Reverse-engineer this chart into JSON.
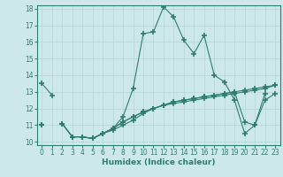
{
  "x": [
    0,
    1,
    2,
    3,
    4,
    5,
    6,
    7,
    8,
    9,
    10,
    11,
    12,
    13,
    14,
    15,
    16,
    17,
    18,
    19,
    20,
    21,
    22,
    23
  ],
  "line1": [
    13.5,
    12.8,
    null,
    10.3,
    10.3,
    10.2,
    10.5,
    10.8,
    11.5,
    13.2,
    16.5,
    16.6,
    18.1,
    17.5,
    16.1,
    15.3,
    16.4,
    14.0,
    13.6,
    12.5,
    10.5,
    11.0,
    12.9,
    null
  ],
  "line2": [
    11.0,
    null,
    11.1,
    10.3,
    10.3,
    10.2,
    10.5,
    10.8,
    11.2,
    11.5,
    11.8,
    12.0,
    12.2,
    12.4,
    12.5,
    12.6,
    12.7,
    12.8,
    12.9,
    13.0,
    13.1,
    13.2,
    13.3,
    13.4
  ],
  "line3": [
    11.0,
    null,
    11.1,
    10.3,
    10.3,
    10.2,
    10.5,
    10.8,
    11.2,
    11.5,
    11.8,
    12.0,
    12.2,
    12.4,
    12.5,
    12.6,
    12.7,
    12.8,
    12.9,
    13.0,
    11.2,
    11.0,
    12.5,
    12.9
  ],
  "line4": [
    11.0,
    null,
    11.1,
    10.3,
    10.3,
    10.2,
    10.5,
    10.7,
    11.0,
    11.3,
    11.7,
    12.0,
    12.2,
    12.3,
    12.4,
    12.5,
    12.6,
    12.7,
    12.8,
    12.9,
    13.0,
    13.1,
    13.2,
    13.4
  ],
  "color": "#2e7d6e",
  "bg_color": "#cde8e8",
  "grid_color": "#b8d8d8",
  "xlabel": "Humidex (Indice chaleur)",
  "xlim": [
    -0.5,
    23.5
  ],
  "ylim": [
    9.8,
    18.2
  ],
  "yticks": [
    10,
    11,
    12,
    13,
    14,
    15,
    16,
    17,
    18
  ],
  "xticks": [
    0,
    1,
    2,
    3,
    4,
    5,
    6,
    7,
    8,
    9,
    10,
    11,
    12,
    13,
    14,
    15,
    16,
    17,
    18,
    19,
    20,
    21,
    22,
    23
  ]
}
